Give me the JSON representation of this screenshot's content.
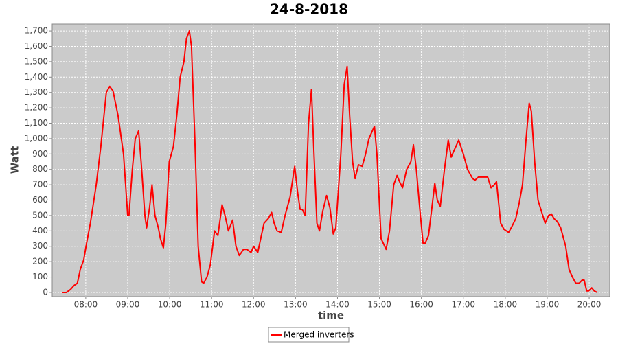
{
  "chart_data": {
    "type": "line",
    "title": "24-8-2018",
    "x_label": "time",
    "y_label": "Watt",
    "xlim": [
      7.2,
      20.49
    ],
    "ylim": [
      -27,
      1745
    ],
    "xticks": [
      {
        "value": 8,
        "label": "08:00"
      },
      {
        "value": 9,
        "label": "09:00"
      },
      {
        "value": 10,
        "label": "10:00"
      },
      {
        "value": 11,
        "label": "11:00"
      },
      {
        "value": 12,
        "label": "12:00"
      },
      {
        "value": 13,
        "label": "13:00"
      },
      {
        "value": 14,
        "label": "14:00"
      },
      {
        "value": 15,
        "label": "15:00"
      },
      {
        "value": 16,
        "label": "16:00"
      },
      {
        "value": 17,
        "label": "17:00"
      },
      {
        "value": 18,
        "label": "18:00"
      },
      {
        "value": 19,
        "label": "19:00"
      },
      {
        "value": 20,
        "label": "20:00"
      }
    ],
    "yticks": [
      0,
      100,
      200,
      300,
      400,
      500,
      600,
      700,
      800,
      900,
      {
        "value": 1000,
        "label": "1,000"
      },
      {
        "value": 1100,
        "label": "1,100"
      },
      {
        "value": 1200,
        "label": "1,200"
      },
      {
        "value": 1300,
        "label": "1,300"
      },
      {
        "value": 1400,
        "label": "1,400"
      },
      {
        "value": 1500,
        "label": "1,500"
      },
      {
        "value": 1600,
        "label": "1,600"
      },
      {
        "value": 1700,
        "label": "1,700"
      }
    ],
    "grid": true,
    "legend": "bottom",
    "x": [
      7.43,
      7.54,
      7.64,
      7.72,
      7.8,
      7.87,
      7.95,
      8.02,
      8.11,
      8.25,
      8.36,
      8.49,
      8.57,
      8.65,
      8.77,
      8.9,
      9.0,
      9.03,
      9.11,
      9.18,
      9.26,
      9.32,
      9.41,
      9.45,
      9.52,
      9.58,
      9.65,
      9.73,
      9.78,
      9.85,
      9.91,
      9.99,
      10.09,
      10.17,
      10.25,
      10.34,
      10.4,
      10.47,
      10.52,
      10.6,
      10.68,
      10.76,
      10.81,
      10.89,
      10.97,
      11.07,
      11.15,
      11.25,
      11.32,
      11.4,
      11.5,
      11.58,
      11.66,
      11.76,
      11.84,
      11.94,
      12.0,
      12.1,
      12.17,
      12.25,
      12.35,
      12.43,
      12.49,
      12.56,
      12.66,
      12.75,
      12.87,
      12.98,
      13.05,
      13.11,
      13.16,
      13.23,
      13.31,
      13.38,
      13.44,
      13.51,
      13.57,
      13.65,
      13.74,
      13.82,
      13.9,
      13.96,
      14.08,
      14.16,
      14.23,
      14.29,
      14.36,
      14.42,
      14.5,
      14.59,
      14.67,
      14.75,
      14.88,
      14.94,
      15.04,
      15.16,
      15.24,
      15.34,
      15.42,
      15.48,
      15.55,
      15.65,
      15.75,
      15.81,
      15.88,
      15.96,
      16.04,
      16.09,
      16.17,
      16.25,
      16.32,
      16.38,
      16.45,
      16.55,
      16.64,
      16.71,
      16.79,
      16.89,
      17.0,
      17.1,
      17.22,
      17.28,
      17.36,
      17.49,
      17.58,
      17.66,
      17.74,
      17.79,
      17.89,
      17.97,
      18.08,
      18.16,
      18.25,
      18.33,
      18.41,
      18.49,
      18.57,
      18.62,
      18.7,
      18.78,
      18.87,
      18.95,
      19.03,
      19.1,
      19.16,
      19.24,
      19.32,
      19.44,
      19.52,
      19.6,
      19.68,
      19.76,
      19.83,
      19.88,
      19.94,
      19.99,
      20.06,
      20.12,
      20.19
    ],
    "series": [
      {
        "name": "Merged inverters",
        "color": "#ff0000",
        "values": [
          0,
          0,
          20,
          45,
          60,
          150,
          210,
          320,
          450,
          700,
          950,
          1300,
          1340,
          1310,
          1150,
          900,
          500,
          500,
          800,
          1000,
          1050,
          850,
          500,
          420,
          550,
          700,
          500,
          420,
          350,
          290,
          450,
          850,
          950,
          1150,
          1400,
          1500,
          1650,
          1700,
          1600,
          1000,
          300,
          70,
          60,
          100,
          180,
          400,
          370,
          570,
          500,
          400,
          470,
          300,
          240,
          280,
          280,
          260,
          300,
          260,
          350,
          450,
          480,
          520,
          450,
          400,
          390,
          500,
          620,
          820,
          650,
          540,
          540,
          500,
          1100,
          1320,
          900,
          450,
          400,
          530,
          630,
          550,
          380,
          420,
          900,
          1350,
          1470,
          1150,
          850,
          740,
          830,
          820,
          900,
          1000,
          1080,
          900,
          350,
          280,
          400,
          700,
          760,
          720,
          680,
          800,
          850,
          960,
          800,
          550,
          320,
          320,
          370,
          550,
          710,
          600,
          560,
          800,
          990,
          880,
          930,
          990,
          900,
          800,
          740,
          730,
          750,
          750,
          750,
          680,
          700,
          720,
          450,
          410,
          390,
          430,
          480,
          580,
          700,
          980,
          1230,
          1180,
          850,
          600,
          520,
          450,
          500,
          510,
          480,
          460,
          420,
          300,
          150,
          100,
          60,
          60,
          80,
          80,
          10,
          10,
          30,
          10,
          0
        ]
      }
    ]
  }
}
